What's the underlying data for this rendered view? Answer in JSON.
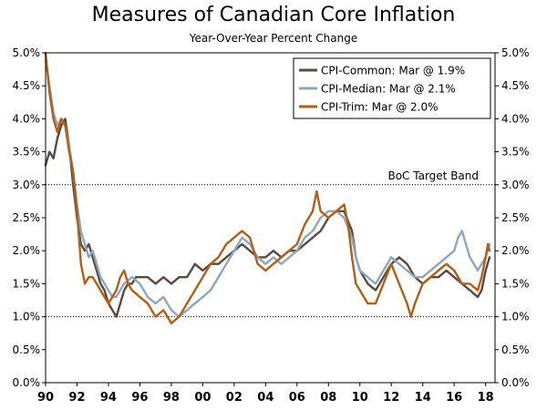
{
  "chart_data": {
    "type": "line",
    "title": "Measures of Canadian Core Inflation",
    "subtitle": "Year-Over-Year Percent Change",
    "xlim": [
      1990,
      2018.6
    ],
    "ylim": [
      0,
      5
    ],
    "x_ticks": [
      1990,
      1992,
      1994,
      1996,
      1998,
      2000,
      2002,
      2004,
      2006,
      2008,
      2010,
      2012,
      2014,
      2016,
      2018
    ],
    "x_tick_labels": [
      "90",
      "92",
      "94",
      "96",
      "98",
      "00",
      "02",
      "04",
      "06",
      "08",
      "10",
      "12",
      "14",
      "16",
      "18"
    ],
    "y_ticks": [
      0,
      0.5,
      1.0,
      1.5,
      2.0,
      2.5,
      3.0,
      3.5,
      4.0,
      4.5,
      5.0
    ],
    "y_tick_labels": [
      "0.0%",
      "0.5%",
      "1.0%",
      "1.5%",
      "2.0%",
      "2.5%",
      "3.0%",
      "3.5%",
      "4.0%",
      "4.5%",
      "5.0%"
    ],
    "legend_position": "top-right",
    "reference_lines": [
      {
        "y": 3.0,
        "label": "BoC Target Band"
      },
      {
        "y": 1.0,
        "label": ""
      }
    ],
    "series": [
      {
        "name": "CPI-Common: Mar @ 1.9%",
        "color": "#5a4a3f",
        "points": [
          [
            1990.0,
            3.3
          ],
          [
            1990.25,
            3.5
          ],
          [
            1990.5,
            3.4
          ],
          [
            1990.75,
            3.7
          ],
          [
            1991.0,
            3.9
          ],
          [
            1991.25,
            4.0
          ],
          [
            1991.5,
            3.6
          ],
          [
            1991.75,
            3.0
          ],
          [
            1992.0,
            2.5
          ],
          [
            1992.25,
            2.1
          ],
          [
            1992.5,
            2.0
          ],
          [
            1992.75,
            2.1
          ],
          [
            1993.0,
            1.9
          ],
          [
            1993.25,
            1.7
          ],
          [
            1993.5,
            1.5
          ],
          [
            1993.75,
            1.4
          ],
          [
            1994.0,
            1.2
          ],
          [
            1994.25,
            1.1
          ],
          [
            1994.5,
            1.0
          ],
          [
            1994.75,
            1.2
          ],
          [
            1995.0,
            1.4
          ],
          [
            1995.25,
            1.5
          ],
          [
            1995.5,
            1.5
          ],
          [
            1995.75,
            1.6
          ],
          [
            1996.0,
            1.6
          ],
          [
            1996.5,
            1.6
          ],
          [
            1997.0,
            1.5
          ],
          [
            1997.5,
            1.6
          ],
          [
            1998.0,
            1.5
          ],
          [
            1998.5,
            1.6
          ],
          [
            1999.0,
            1.6
          ],
          [
            1999.5,
            1.8
          ],
          [
            2000.0,
            1.7
          ],
          [
            2000.5,
            1.8
          ],
          [
            2001.0,
            1.8
          ],
          [
            2001.5,
            1.9
          ],
          [
            2002.0,
            2.0
          ],
          [
            2002.5,
            2.1
          ],
          [
            2003.0,
            2.0
          ],
          [
            2003.5,
            1.9
          ],
          [
            2004.0,
            1.9
          ],
          [
            2004.5,
            2.0
          ],
          [
            2005.0,
            1.9
          ],
          [
            2005.5,
            2.0
          ],
          [
            2006.0,
            2.0
          ],
          [
            2006.5,
            2.1
          ],
          [
            2007.0,
            2.2
          ],
          [
            2007.5,
            2.3
          ],
          [
            2008.0,
            2.5
          ],
          [
            2008.5,
            2.6
          ],
          [
            2009.0,
            2.6
          ],
          [
            2009.5,
            2.3
          ],
          [
            2009.75,
            1.9
          ],
          [
            2010.0,
            1.7
          ],
          [
            2010.5,
            1.5
          ],
          [
            2011.0,
            1.4
          ],
          [
            2011.5,
            1.6
          ],
          [
            2012.0,
            1.8
          ],
          [
            2012.5,
            1.9
          ],
          [
            2013.0,
            1.8
          ],
          [
            2013.5,
            1.6
          ],
          [
            2014.0,
            1.5
          ],
          [
            2014.5,
            1.6
          ],
          [
            2015.0,
            1.6
          ],
          [
            2015.5,
            1.7
          ],
          [
            2016.0,
            1.6
          ],
          [
            2016.5,
            1.5
          ],
          [
            2017.0,
            1.4
          ],
          [
            2017.5,
            1.3
          ],
          [
            2017.75,
            1.4
          ],
          [
            2018.0,
            1.7
          ],
          [
            2018.25,
            1.9
          ]
        ]
      },
      {
        "name": "CPI-Median: Mar @ 2.1%",
        "color": "#8fa7be",
        "points": [
          [
            1990.0,
            4.9
          ],
          [
            1990.25,
            4.5
          ],
          [
            1990.5,
            4.1
          ],
          [
            1990.75,
            3.9
          ],
          [
            1991.0,
            4.0
          ],
          [
            1991.25,
            3.9
          ],
          [
            1991.5,
            3.6
          ],
          [
            1991.75,
            3.2
          ],
          [
            1992.0,
            2.7
          ],
          [
            1992.25,
            2.3
          ],
          [
            1992.5,
            2.1
          ],
          [
            1992.75,
            1.9
          ],
          [
            1993.0,
            2.0
          ],
          [
            1993.25,
            1.8
          ],
          [
            1993.5,
            1.6
          ],
          [
            1993.75,
            1.5
          ],
          [
            1994.0,
            1.4
          ],
          [
            1994.25,
            1.3
          ],
          [
            1994.5,
            1.3
          ],
          [
            1994.75,
            1.4
          ],
          [
            1995.0,
            1.5
          ],
          [
            1995.5,
            1.6
          ],
          [
            1996.0,
            1.5
          ],
          [
            1996.5,
            1.3
          ],
          [
            1997.0,
            1.2
          ],
          [
            1997.5,
            1.3
          ],
          [
            1998.0,
            1.1
          ],
          [
            1998.5,
            1.0
          ],
          [
            1999.0,
            1.1
          ],
          [
            1999.5,
            1.2
          ],
          [
            2000.0,
            1.3
          ],
          [
            2000.5,
            1.4
          ],
          [
            2001.0,
            1.6
          ],
          [
            2001.5,
            1.8
          ],
          [
            2002.0,
            2.0
          ],
          [
            2002.5,
            2.2
          ],
          [
            2003.0,
            2.1
          ],
          [
            2003.5,
            1.9
          ],
          [
            2004.0,
            1.8
          ],
          [
            2004.5,
            1.9
          ],
          [
            2005.0,
            1.8
          ],
          [
            2005.5,
            1.9
          ],
          [
            2006.0,
            2.0
          ],
          [
            2006.5,
            2.2
          ],
          [
            2007.0,
            2.3
          ],
          [
            2007.5,
            2.5
          ],
          [
            2008.0,
            2.6
          ],
          [
            2008.5,
            2.6
          ],
          [
            2009.0,
            2.5
          ],
          [
            2009.5,
            2.2
          ],
          [
            2009.75,
            1.9
          ],
          [
            2010.0,
            1.7
          ],
          [
            2010.5,
            1.6
          ],
          [
            2011.0,
            1.5
          ],
          [
            2011.5,
            1.7
          ],
          [
            2012.0,
            1.9
          ],
          [
            2012.5,
            1.8
          ],
          [
            2013.0,
            1.7
          ],
          [
            2013.5,
            1.6
          ],
          [
            2014.0,
            1.6
          ],
          [
            2014.5,
            1.7
          ],
          [
            2015.0,
            1.8
          ],
          [
            2015.5,
            1.9
          ],
          [
            2016.0,
            2.0
          ],
          [
            2016.25,
            2.2
          ],
          [
            2016.5,
            2.3
          ],
          [
            2016.75,
            2.1
          ],
          [
            2017.0,
            1.9
          ],
          [
            2017.5,
            1.7
          ],
          [
            2017.75,
            1.8
          ],
          [
            2018.0,
            1.9
          ],
          [
            2018.25,
            2.1
          ]
        ]
      },
      {
        "name": "CPI-Trim: Mar @ 2.0%",
        "color": "#b35f16",
        "points": [
          [
            1990.0,
            5.0
          ],
          [
            1990.25,
            4.4
          ],
          [
            1990.5,
            4.0
          ],
          [
            1990.75,
            3.8
          ],
          [
            1991.0,
            4.0
          ],
          [
            1991.25,
            3.9
          ],
          [
            1991.5,
            3.5
          ],
          [
            1991.75,
            3.2
          ],
          [
            1992.0,
            2.6
          ],
          [
            1992.25,
            1.8
          ],
          [
            1992.5,
            1.5
          ],
          [
            1992.75,
            1.6
          ],
          [
            1993.0,
            1.6
          ],
          [
            1993.25,
            1.5
          ],
          [
            1993.5,
            1.4
          ],
          [
            1993.75,
            1.3
          ],
          [
            1994.0,
            1.2
          ],
          [
            1994.25,
            1.3
          ],
          [
            1994.5,
            1.4
          ],
          [
            1994.75,
            1.6
          ],
          [
            1995.0,
            1.7
          ],
          [
            1995.25,
            1.5
          ],
          [
            1995.5,
            1.4
          ],
          [
            1996.0,
            1.3
          ],
          [
            1996.5,
            1.2
          ],
          [
            1997.0,
            1.0
          ],
          [
            1997.5,
            1.1
          ],
          [
            1998.0,
            0.9
          ],
          [
            1998.5,
            1.0
          ],
          [
            1999.0,
            1.2
          ],
          [
            1999.5,
            1.4
          ],
          [
            2000.0,
            1.6
          ],
          [
            2000.5,
            1.8
          ],
          [
            2001.0,
            1.9
          ],
          [
            2001.5,
            2.1
          ],
          [
            2002.0,
            2.2
          ],
          [
            2002.5,
            2.3
          ],
          [
            2003.0,
            2.2
          ],
          [
            2003.5,
            1.8
          ],
          [
            2004.0,
            1.7
          ],
          [
            2004.5,
            1.8
          ],
          [
            2005.0,
            1.9
          ],
          [
            2005.5,
            2.0
          ],
          [
            2006.0,
            2.1
          ],
          [
            2006.5,
            2.4
          ],
          [
            2007.0,
            2.6
          ],
          [
            2007.25,
            2.9
          ],
          [
            2007.5,
            2.6
          ],
          [
            2008.0,
            2.5
          ],
          [
            2008.5,
            2.6
          ],
          [
            2009.0,
            2.7
          ],
          [
            2009.25,
            2.4
          ],
          [
            2009.5,
            1.9
          ],
          [
            2009.75,
            1.5
          ],
          [
            2010.0,
            1.4
          ],
          [
            2010.5,
            1.2
          ],
          [
            2011.0,
            1.2
          ],
          [
            2011.5,
            1.5
          ],
          [
            2012.0,
            1.8
          ],
          [
            2012.5,
            1.5
          ],
          [
            2013.0,
            1.2
          ],
          [
            2013.25,
            1.0
          ],
          [
            2013.5,
            1.2
          ],
          [
            2014.0,
            1.5
          ],
          [
            2014.5,
            1.6
          ],
          [
            2015.0,
            1.7
          ],
          [
            2015.5,
            1.8
          ],
          [
            2016.0,
            1.7
          ],
          [
            2016.5,
            1.5
          ],
          [
            2017.0,
            1.5
          ],
          [
            2017.5,
            1.4
          ],
          [
            2017.75,
            1.6
          ],
          [
            2018.0,
            1.9
          ],
          [
            2018.15,
            2.1
          ],
          [
            2018.25,
            2.0
          ]
        ]
      }
    ]
  }
}
